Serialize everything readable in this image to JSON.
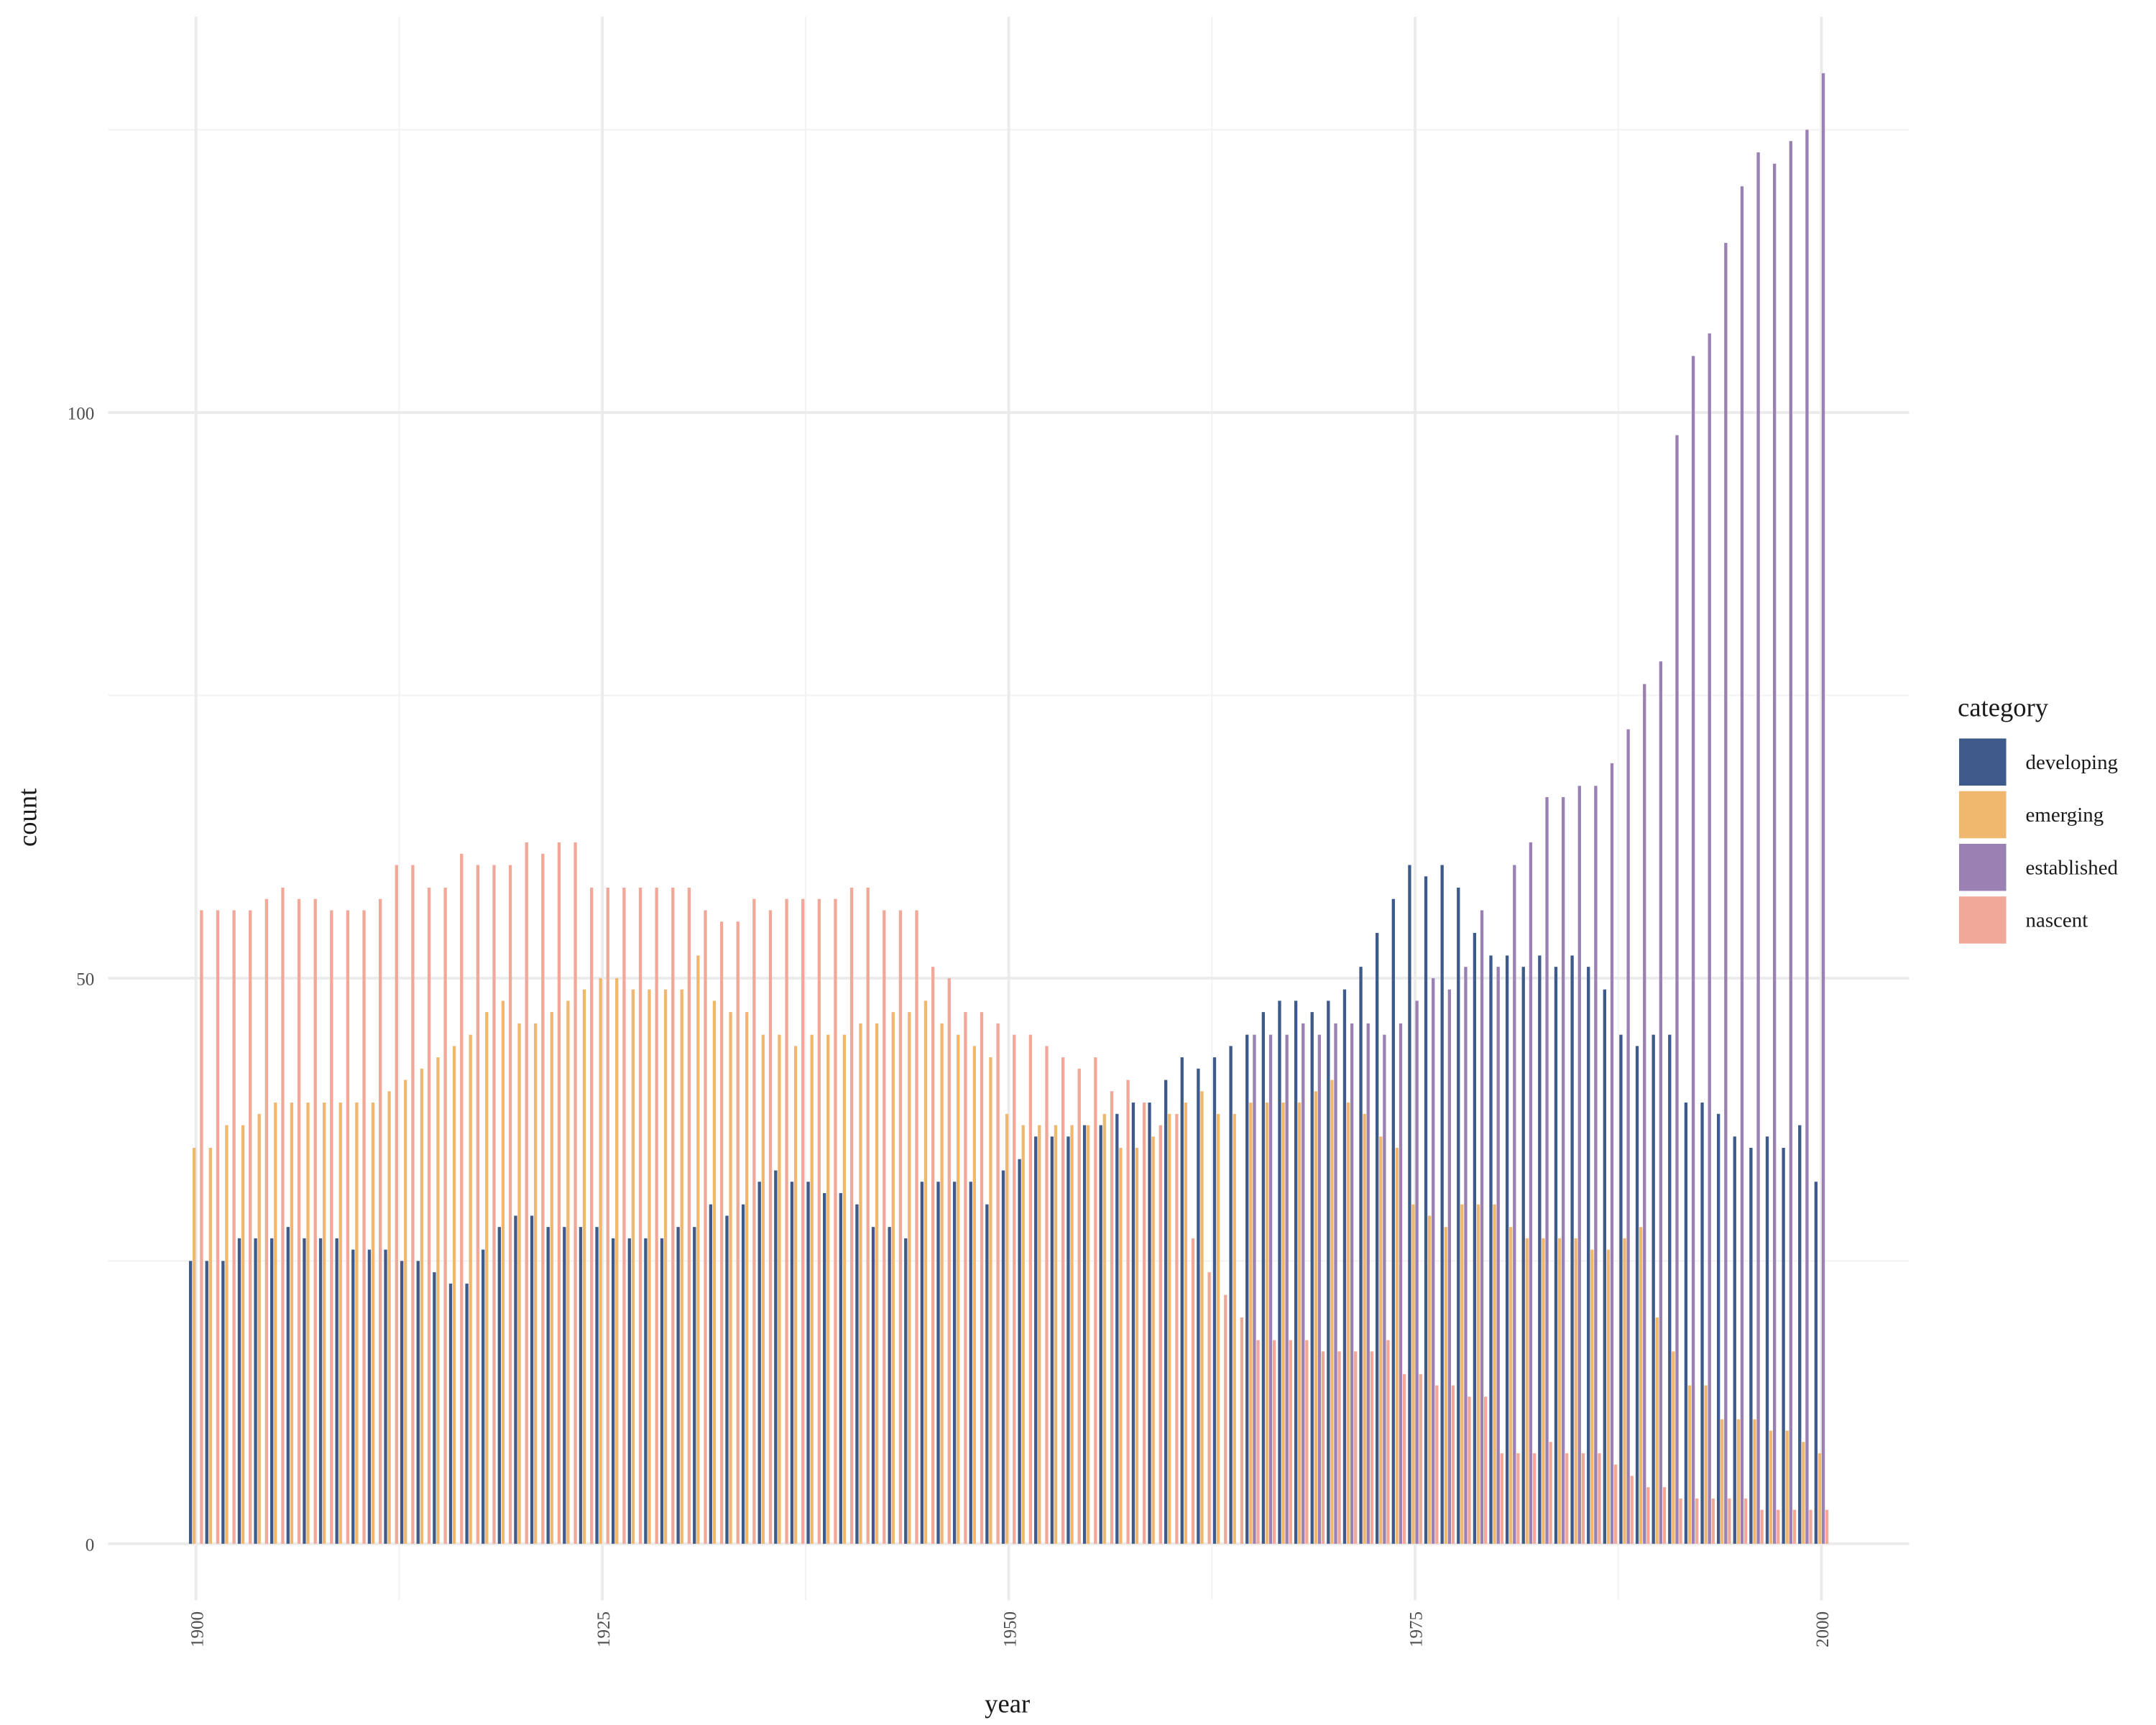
{
  "chart_data": {
    "type": "bar",
    "x_label": "year",
    "y_label": "count",
    "legend_title": "category",
    "legend_position": "right",
    "grid": true,
    "x": [
      1900,
      1901,
      1902,
      1903,
      1904,
      1905,
      1906,
      1907,
      1908,
      1909,
      1910,
      1911,
      1912,
      1913,
      1914,
      1915,
      1916,
      1917,
      1918,
      1919,
      1920,
      1921,
      1922,
      1923,
      1924,
      1925,
      1926,
      1927,
      1928,
      1929,
      1930,
      1931,
      1932,
      1933,
      1934,
      1935,
      1936,
      1937,
      1938,
      1939,
      1940,
      1941,
      1942,
      1943,
      1944,
      1945,
      1946,
      1947,
      1948,
      1949,
      1950,
      1951,
      1952,
      1953,
      1954,
      1955,
      1956,
      1957,
      1958,
      1959,
      1960,
      1961,
      1962,
      1963,
      1964,
      1965,
      1966,
      1967,
      1968,
      1969,
      1970,
      1971,
      1972,
      1973,
      1974,
      1975,
      1976,
      1977,
      1978,
      1979,
      1980,
      1981,
      1982,
      1983,
      1984,
      1985,
      1986,
      1987,
      1988,
      1989,
      1990,
      1991,
      1992,
      1993,
      1994,
      1995,
      1996,
      1997,
      1998,
      1999,
      2000
    ],
    "xlim": [
      1894.6,
      2005.4
    ],
    "xticks": [
      1900,
      1925,
      1950,
      1975,
      2000
    ],
    "xminor": [
      1912.5,
      1937.5,
      1962.5,
      1987.5
    ],
    "ylim": [
      -5,
      135
    ],
    "yticks": [
      0,
      50,
      100
    ],
    "yminor": [
      25,
      75,
      125
    ],
    "series": [
      {
        "name": "developing",
        "color": "#3d5a8a",
        "values": [
          25,
          25,
          25,
          27,
          27,
          27,
          28,
          27,
          27,
          27,
          26,
          26,
          26,
          25,
          25,
          24,
          23,
          23,
          26,
          28,
          29,
          29,
          28,
          28,
          28,
          28,
          27,
          27,
          27,
          27,
          28,
          28,
          30,
          29,
          30,
          32,
          33,
          32,
          32,
          31,
          31,
          30,
          28,
          28,
          27,
          32,
          32,
          32,
          32,
          30,
          33,
          34,
          36,
          36,
          36,
          37,
          37,
          38,
          39,
          39,
          41,
          43,
          42,
          43,
          44,
          45,
          47,
          48,
          48,
          47,
          48,
          49,
          51,
          54,
          57,
          60,
          59,
          60,
          58,
          54,
          52,
          52,
          51,
          52,
          51,
          52,
          51,
          49,
          45,
          44,
          45,
          45,
          39,
          39,
          38,
          36,
          35,
          36,
          35,
          37,
          32
        ]
      },
      {
        "name": "emerging",
        "color": "#f0b86e",
        "values": [
          35,
          35,
          37,
          37,
          38,
          39,
          39,
          39,
          39,
          39,
          39,
          39,
          40,
          41,
          42,
          43,
          44,
          45,
          47,
          48,
          46,
          46,
          47,
          48,
          49,
          50,
          50,
          49,
          49,
          49,
          49,
          52,
          48,
          47,
          47,
          45,
          45,
          44,
          45,
          45,
          45,
          46,
          46,
          47,
          47,
          48,
          46,
          45,
          44,
          43,
          38,
          37,
          37,
          37,
          37,
          37,
          38,
          35,
          35,
          36,
          38,
          39,
          40,
          38,
          38,
          39,
          39,
          39,
          39,
          40,
          41,
          39,
          38,
          36,
          35,
          30,
          29,
          28,
          30,
          30,
          30,
          28,
          27,
          27,
          27,
          27,
          26,
          26,
          27,
          28,
          20,
          17,
          14,
          14,
          11,
          11,
          11,
          10,
          10,
          9,
          8
        ]
      },
      {
        "name": "established",
        "color": "#9a80b3",
        "values": [
          null,
          null,
          null,
          null,
          null,
          null,
          null,
          null,
          null,
          null,
          null,
          null,
          null,
          null,
          null,
          null,
          null,
          null,
          null,
          null,
          null,
          null,
          null,
          null,
          null,
          null,
          null,
          null,
          null,
          null,
          null,
          null,
          null,
          null,
          null,
          null,
          null,
          null,
          null,
          null,
          null,
          null,
          null,
          null,
          null,
          null,
          null,
          null,
          null,
          null,
          null,
          null,
          null,
          null,
          null,
          null,
          null,
          null,
          null,
          null,
          null,
          null,
          null,
          null,
          null,
          45,
          45,
          45,
          46,
          45,
          46,
          46,
          46,
          45,
          46,
          48,
          50,
          49,
          51,
          56,
          51,
          60,
          62,
          66,
          66,
          67,
          67,
          69,
          72,
          76,
          78,
          98,
          105,
          107,
          115,
          120,
          123,
          122,
          124,
          125,
          130
        ]
      },
      {
        "name": "nascent",
        "color": "#f2a898",
        "values": [
          56,
          56,
          56,
          56,
          57,
          58,
          57,
          57,
          56,
          56,
          56,
          57,
          60,
          60,
          58,
          58,
          61,
          60,
          60,
          60,
          62,
          61,
          62,
          62,
          58,
          58,
          58,
          58,
          58,
          58,
          58,
          56,
          55,
          55,
          57,
          56,
          57,
          57,
          57,
          57,
          58,
          58,
          56,
          56,
          56,
          51,
          50,
          47,
          47,
          46,
          45,
          45,
          44,
          43,
          42,
          43,
          40,
          41,
          39,
          37,
          38,
          27,
          24,
          22,
          20,
          18,
          18,
          18,
          18,
          17,
          17,
          17,
          17,
          18,
          15,
          15,
          14,
          14,
          13,
          13,
          8,
          8,
          8,
          9,
          8,
          8,
          8,
          7,
          6,
          5,
          5,
          4,
          4,
          4,
          4,
          4,
          3,
          3,
          3,
          3,
          3
        ]
      }
    ]
  }
}
